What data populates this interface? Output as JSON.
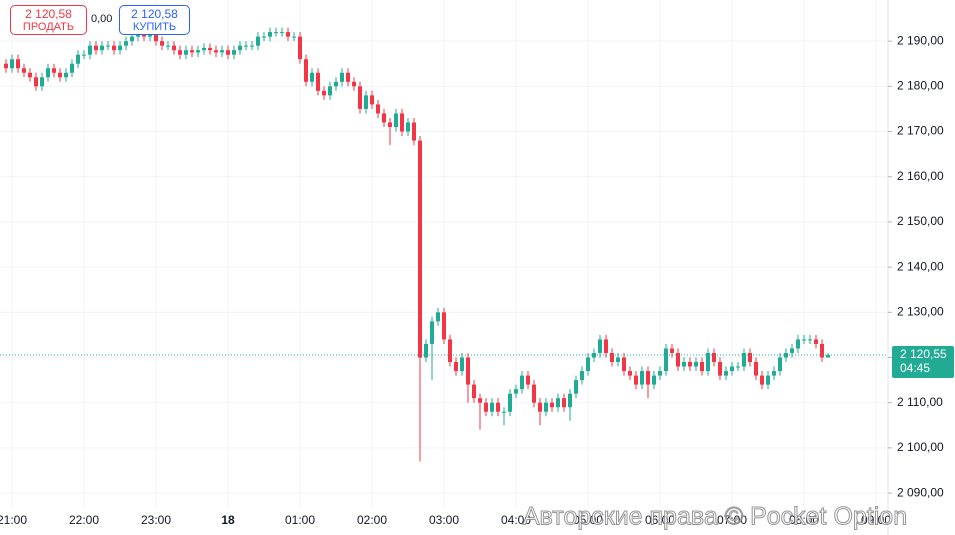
{
  "trade_panel": {
    "sell_price": "2 120,58",
    "sell_label": "ПРОДАТЬ",
    "spread": "0,00",
    "buy_price": "2 120,58",
    "buy_label": "КУПИТЬ"
  },
  "watermark": "Авторские права © Pocket Option",
  "chart_data": {
    "type": "candlestick",
    "up_color": "#22ab94",
    "down_color": "#f23645",
    "grid": true,
    "xlim": [
      -10,
      730
    ],
    "xticks": [
      {
        "value": 0,
        "label": "21:00"
      },
      {
        "value": 60,
        "label": "22:00"
      },
      {
        "value": 120,
        "label": "23:00"
      },
      {
        "value": 180,
        "label": "18"
      },
      {
        "value": 240,
        "label": "01:00"
      },
      {
        "value": 300,
        "label": "02:00"
      },
      {
        "value": 360,
        "label": "03:00"
      },
      {
        "value": 420,
        "label": "04:00"
      },
      {
        "value": 480,
        "label": "05:00"
      },
      {
        "value": 540,
        "label": "06:00"
      },
      {
        "value": 600,
        "label": "07:00"
      },
      {
        "value": 660,
        "label": "08:00"
      },
      {
        "value": 720,
        "label": "09:00"
      }
    ],
    "ylim": [
      2086.7,
      2199.1
    ],
    "yticks": [
      {
        "value": 2090,
        "label": "2 090,00"
      },
      {
        "value": 2100,
        "label": "2 100,00"
      },
      {
        "value": 2110,
        "label": "2 110,00"
      },
      {
        "value": 2120,
        "label": "2 120,00"
      },
      {
        "value": 2130,
        "label": "2 130,00"
      },
      {
        "value": 2140,
        "label": "2 140,00"
      },
      {
        "value": 2150,
        "label": "2 150,00"
      },
      {
        "value": 2160,
        "label": "2 160,00"
      },
      {
        "value": 2170,
        "label": "2 170,00"
      },
      {
        "value": 2180,
        "label": "2 180,00"
      },
      {
        "value": 2190,
        "label": "2 190,00"
      }
    ],
    "price_line": {
      "value": 2120.55,
      "label": "2 120,55",
      "timer": "04:45",
      "color": "#22ab94"
    },
    "x": [
      -5,
      0,
      5,
      10,
      15,
      20,
      25,
      30,
      35,
      40,
      45,
      50,
      55,
      60,
      65,
      70,
      75,
      80,
      85,
      90,
      95,
      100,
      105,
      110,
      115,
      120,
      125,
      130,
      135,
      140,
      145,
      150,
      155,
      160,
      165,
      170,
      175,
      180,
      185,
      190,
      195,
      200,
      205,
      210,
      215,
      220,
      225,
      230,
      235,
      240,
      245,
      250,
      255,
      260,
      265,
      270,
      275,
      280,
      285,
      290,
      295,
      300,
      305,
      310,
      315,
      320,
      325,
      330,
      335,
      340,
      345,
      350,
      355,
      360,
      365,
      370,
      375,
      380,
      385,
      390,
      395,
      400,
      405,
      410,
      415,
      420,
      425,
      430,
      435,
      440,
      445,
      450,
      455,
      460,
      465,
      470,
      475,
      480,
      485,
      490,
      495,
      500,
      505,
      510,
      515,
      520,
      525,
      530,
      535,
      540,
      545,
      550,
      555,
      560,
      565,
      570,
      575,
      580,
      585,
      590,
      595,
      600,
      605,
      610,
      615,
      620,
      625,
      630,
      635,
      640,
      645,
      650,
      655,
      660,
      665,
      670,
      675,
      680
    ],
    "open": [
      2185,
      2184,
      2186,
      2184,
      2183,
      2182,
      2180,
      2182,
      2184,
      2183,
      2182,
      2183,
      2185,
      2187,
      2187,
      2189,
      2188,
      2189,
      2189,
      2188,
      2189,
      2190,
      2191,
      2192,
      2191,
      2192,
      2190,
      2189,
      2189,
      2188,
      2187,
      2188,
      2187.5,
      2188,
      2188.5,
      2188,
      2187.5,
      2188,
      2187,
      2188,
      2189,
      2189,
      2189,
      2191,
      2191,
      2192,
      2192,
      2192,
      2191,
      2191,
      2186,
      2181,
      2183,
      2179,
      2178,
      2180,
      2181,
      2183,
      2181,
      2180,
      2175,
      2178,
      2176,
      2174,
      2172,
      2171,
      2174,
      2170,
      2172,
      2168,
      2120,
      2123,
      2128,
      2130,
      2124,
      2119,
      2117,
      2120,
      2114,
      2111,
      2110,
      2108,
      2110,
      2108,
      2108,
      2112,
      2113,
      2116,
      2114,
      2110,
      2108,
      2110,
      2109,
      2111,
      2109,
      2112,
      2115,
      2117,
      2120,
      2121,
      2124,
      2121,
      2119,
      2120,
      2117,
      2116,
      2114,
      2117,
      2114,
      2116,
      2117,
      2122,
      2121,
      2118,
      2119,
      2118,
      2119,
      2117,
      2121,
      2119,
      2116,
      2117,
      2118,
      2118,
      2121,
      2119,
      2116,
      2114,
      2116,
      2117,
      2120,
      2121,
      2122,
      2124,
      2124,
      2124,
      2123,
      2120
    ],
    "high": [
      2186,
      2187,
      2187,
      2185,
      2184,
      2183,
      2183,
      2185,
      2185,
      2184,
      2184,
      2186,
      2188,
      2188,
      2190,
      2190,
      2190,
      2190,
      2190,
      2190,
      2191,
      2192,
      2193,
      2193,
      2193,
      2193,
      2191,
      2190,
      2190,
      2189,
      2189,
      2189,
      2189,
      2189.5,
      2189.5,
      2189,
      2189,
      2189,
      2189,
      2190,
      2190,
      2190,
      2192,
      2192,
      2193,
      2193,
      2193,
      2193,
      2192,
      2192,
      2187,
      2184,
      2184,
      2180,
      2181,
      2182,
      2184,
      2184,
      2182,
      2181,
      2179,
      2179,
      2177,
      2175,
      2173,
      2175,
      2175,
      2173,
      2173,
      2169,
      2124,
      2129,
      2131,
      2131,
      2125,
      2120,
      2121,
      2121,
      2115,
      2112,
      2111,
      2111,
      2111,
      2109,
      2113,
      2114,
      2117,
      2117,
      2115,
      2111,
      2111,
      2111,
      2112,
      2112,
      2113,
      2116,
      2118,
      2121,
      2122,
      2125,
      2125,
      2122,
      2121,
      2121,
      2118,
      2117,
      2118,
      2118,
      2117,
      2118,
      2123,
      2123,
      2122,
      2120,
      2120,
      2120,
      2120,
      2122,
      2122,
      2120,
      2118,
      2119,
      2119,
      2122,
      2122,
      2120,
      2117,
      2117,
      2118,
      2121,
      2122,
      2123,
      2125,
      2125,
      2125,
      2125,
      2124,
      2121
    ],
    "low": [
      2183,
      2183,
      2183,
      2182,
      2181,
      2179,
      2179,
      2181,
      2182,
      2181,
      2181,
      2182,
      2184,
      2186,
      2186,
      2187,
      2187,
      2188,
      2187,
      2187,
      2188,
      2189,
      2190,
      2190,
      2190,
      2189,
      2188,
      2188,
      2187,
      2186,
      2186,
      2186.5,
      2186.5,
      2187,
      2187,
      2186.5,
      2186.5,
      2186,
      2186,
      2187,
      2188,
      2188,
      2188,
      2190,
      2190,
      2191,
      2191,
      2190,
      2190,
      2185,
      2180,
      2180,
      2178,
      2177,
      2177,
      2179,
      2180,
      2180,
      2179,
      2174,
      2174,
      2175,
      2173,
      2171,
      2167,
      2170,
      2169,
      2169,
      2167,
      2097,
      2119,
      2115,
      2127,
      2123,
      2118,
      2116,
      2116,
      2110,
      2110,
      2104,
      2107,
      2107,
      2107,
      2105,
      2107,
      2111,
      2112,
      2113,
      2109,
      2105,
      2107,
      2108,
      2108,
      2108,
      2106,
      2111,
      2114,
      2116,
      2119,
      2120,
      2120,
      2118,
      2118,
      2116,
      2115,
      2113,
      2113,
      2111,
      2113,
      2115,
      2116,
      2120,
      2117,
      2117,
      2117,
      2117,
      2116,
      2116,
      2118,
      2115,
      2115,
      2116,
      2117,
      2117,
      2118,
      2115,
      2113,
      2113,
      2115,
      2116,
      2119,
      2120,
      2121,
      2123,
      2123,
      2122,
      2119,
      2120
    ],
    "close": [
      2184,
      2186,
      2184,
      2183,
      2182,
      2180,
      2182,
      2184,
      2183,
      2182,
      2183,
      2185,
      2187,
      2187,
      2189,
      2188,
      2189,
      2189,
      2188,
      2189,
      2190,
      2191,
      2192,
      2191,
      2192,
      2190,
      2189,
      2189,
      2188,
      2187,
      2188,
      2187.5,
      2188,
      2188.5,
      2188,
      2187.5,
      2188,
      2187,
      2188,
      2189,
      2189,
      2189,
      2191,
      2191,
      2192,
      2192,
      2192,
      2191,
      2191,
      2186,
      2181,
      2183,
      2179,
      2178,
      2180,
      2181,
      2183,
      2181,
      2180,
      2175,
      2178,
      2176,
      2174,
      2172,
      2171,
      2174,
      2170,
      2172,
      2168,
      2120,
      2123,
      2128,
      2130,
      2124,
      2119,
      2117,
      2120,
      2114,
      2111,
      2110,
      2108,
      2110,
      2108,
      2108,
      2112,
      2113,
      2116,
      2114,
      2110,
      2108,
      2110,
      2109,
      2111,
      2109,
      2112,
      2115,
      2117,
      2120,
      2121,
      2124,
      2121,
      2119,
      2120,
      2117,
      2116,
      2114,
      2117,
      2114,
      2116,
      2117,
      2122,
      2121,
      2118,
      2119,
      2118,
      2119,
      2117,
      2121,
      2119,
      2116,
      2117,
      2118,
      2118,
      2121,
      2119,
      2116,
      2114,
      2116,
      2117,
      2120,
      2121,
      2122,
      2124,
      2124,
      2124,
      2123,
      2120,
      2120.55
    ]
  }
}
